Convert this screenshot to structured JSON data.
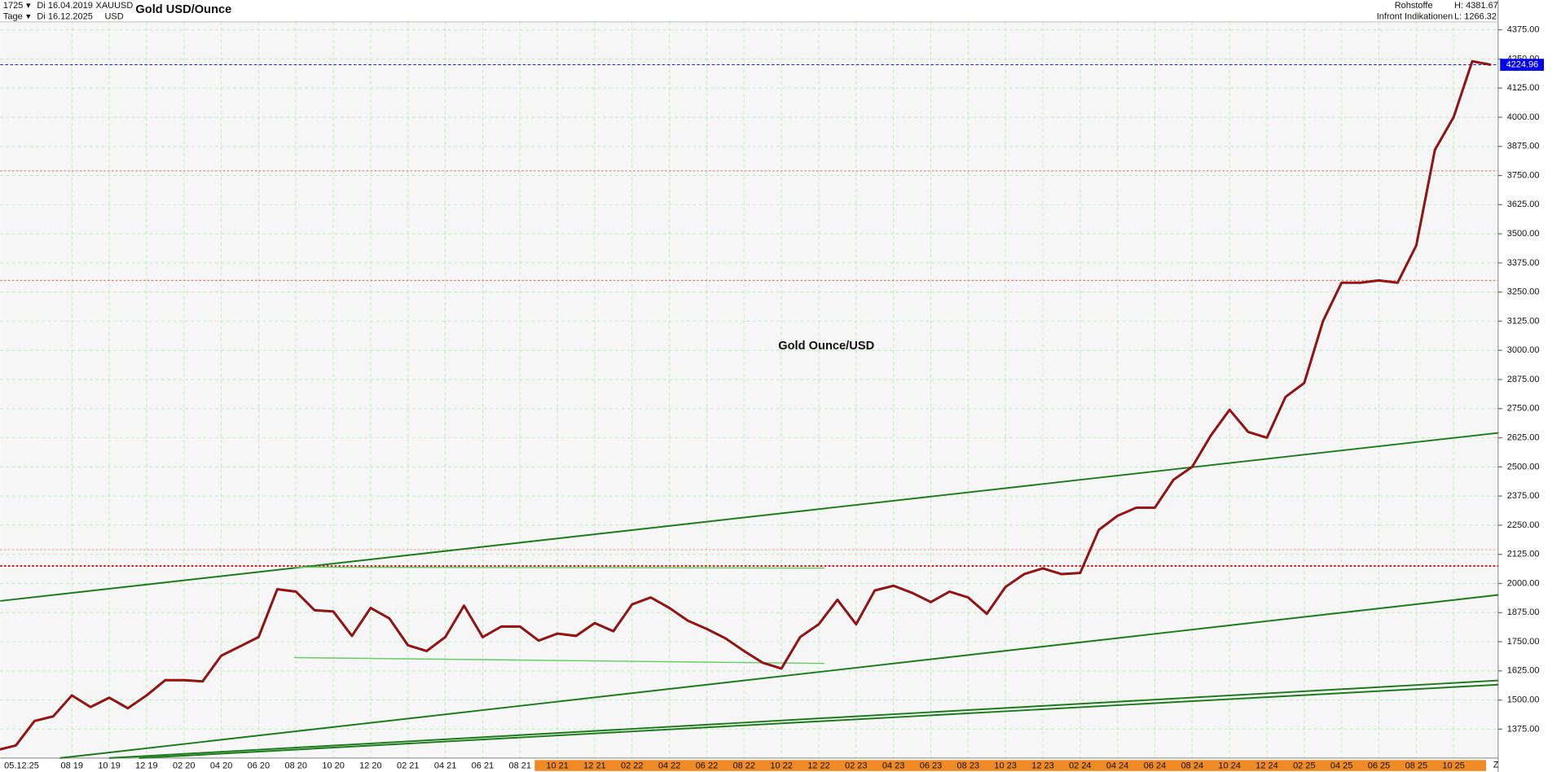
{
  "chart_data": {
    "type": "line",
    "title": "Gold USD/Ounce",
    "watermark": "Gold Ounce/USD",
    "info": {
      "bars": "1725",
      "from": "Di 16.04.2019",
      "symbol": "XAUUSD",
      "period": "Tage",
      "to": "Di 16.12.2025",
      "currency": "USD",
      "group": "Rohstoffe",
      "high": "H: 4381.67",
      "source": "Infront Indikationen",
      "low": "L: 1266.32",
      "cursor_date": "05.12.25",
      "zoom": "Z"
    },
    "categories": [
      null,
      null,
      null,
      null,
      "08 19",
      null,
      "10 19",
      null,
      "12 19",
      null,
      "02 20",
      null,
      "04 20",
      null,
      "06 20",
      null,
      "08 20",
      null,
      "10 20",
      null,
      "12 20",
      null,
      "02 21",
      null,
      "04 21",
      null,
      "06 21",
      null,
      "08 21",
      null,
      "10 21",
      null,
      "12 21",
      null,
      "02 22",
      null,
      "04 22",
      null,
      "06 22",
      null,
      "08 22",
      null,
      "10 22",
      null,
      "12 22",
      null,
      "02 23",
      null,
      "04 23",
      null,
      "06 23",
      null,
      "08 23",
      null,
      "10 23",
      null,
      "12 23",
      null,
      "02 24",
      null,
      "04 24",
      null,
      "06 24",
      null,
      "08 24",
      null,
      "10 24",
      null,
      "12 24",
      null,
      "02 25",
      null,
      "04 25",
      null,
      "06 25",
      null,
      "08 25",
      null,
      "10 25",
      null,
      null
    ],
    "values": [
      1285,
      1305,
      1410,
      1430,
      1520,
      1470,
      1510,
      1465,
      1520,
      1585,
      1585,
      1580,
      1690,
      1730,
      1770,
      1975,
      1965,
      1885,
      1880,
      1775,
      1895,
      1850,
      1735,
      1710,
      1770,
      1905,
      1770,
      1815,
      1815,
      1755,
      1785,
      1775,
      1830,
      1795,
      1910,
      1940,
      1895,
      1840,
      1805,
      1765,
      1710,
      1660,
      1635,
      1770,
      1825,
      1930,
      1825,
      1970,
      1990,
      1960,
      1920,
      1965,
      1940,
      1870,
      1985,
      2040,
      2065,
      2040,
      2045,
      2230,
      2290,
      2325,
      2325,
      2445,
      2500,
      2635,
      2745,
      2650,
      2625,
      2800,
      2860,
      3125,
      3290,
      3290,
      3300,
      3290,
      3450,
      3860,
      4000,
      4240,
      4224.96
    ],
    "color": "#d40000",
    "last_price_color": "#0000ee",
    "ylim": [
      1251,
      4409
    ],
    "yticks": [
      {
        "value": 1375,
        "label": "1375.00"
      },
      {
        "value": 1500,
        "label": "1500.00"
      },
      {
        "value": 1625,
        "label": "1625.00"
      },
      {
        "value": 1750,
        "label": "1750.00"
      },
      {
        "value": 1875,
        "label": "1875.00"
      },
      {
        "value": 2000,
        "label": "2000.00"
      },
      {
        "value": 2125,
        "label": "2125.00"
      },
      {
        "value": 2250,
        "label": "2250.00"
      },
      {
        "value": 2375,
        "label": "2375.00"
      },
      {
        "value": 2500,
        "label": "2500.00"
      },
      {
        "value": 2625,
        "label": "2625.00"
      },
      {
        "value": 2750,
        "label": "2750.00"
      },
      {
        "value": 2875,
        "label": "2875.00"
      },
      {
        "value": 3000,
        "label": "3000.00"
      },
      {
        "value": 3125,
        "label": "3125.00"
      },
      {
        "value": 3250,
        "label": "3250.00"
      },
      {
        "value": 3375,
        "label": "3375.00"
      },
      {
        "value": 3500,
        "label": "3500.00"
      },
      {
        "value": 3625,
        "label": "3625.00"
      },
      {
        "value": 3750,
        "label": "3750.00"
      },
      {
        "value": 3875,
        "label": "3875.00"
      },
      {
        "value": 4000,
        "label": "4000.00"
      },
      {
        "value": 4125,
        "label": "4125.00"
      },
      {
        "value": 4250,
        "label": "4250.00"
      },
      {
        "value": 4375,
        "label": "4375.00"
      }
    ],
    "grid": true,
    "levels": [
      {
        "value": 3770,
        "color": "#e07070"
      },
      {
        "value": 3300,
        "color": "#e07070"
      },
      {
        "value": 2145,
        "color": "#f0a0a0"
      },
      {
        "value": 2075,
        "color": "#e01010"
      }
    ],
    "trend_lines": [
      {
        "start": [
          0.16,
          1925
        ],
        "end": [
          80.4,
          2646
        ],
        "color": "#1a7a1a"
      },
      {
        "start": [
          3.36,
          1251
        ],
        "end": [
          80.4,
          1951
        ],
        "color": "#1a7a1a"
      },
      {
        "start": [
          6.0,
          1251
        ],
        "end": [
          80.4,
          1584
        ],
        "color": "#1a7a1a"
      },
      {
        "start": [
          7.6,
          1251
        ],
        "end": [
          80.4,
          1566
        ],
        "color": "#1a7a1a"
      },
      {
        "start": [
          15.9,
          2070
        ],
        "end": [
          44.3,
          2066
        ],
        "color": "#66cc66"
      },
      {
        "start": [
          15.9,
          1682
        ],
        "end": [
          44.3,
          1657
        ],
        "color": "#66cc66"
      }
    ]
  }
}
